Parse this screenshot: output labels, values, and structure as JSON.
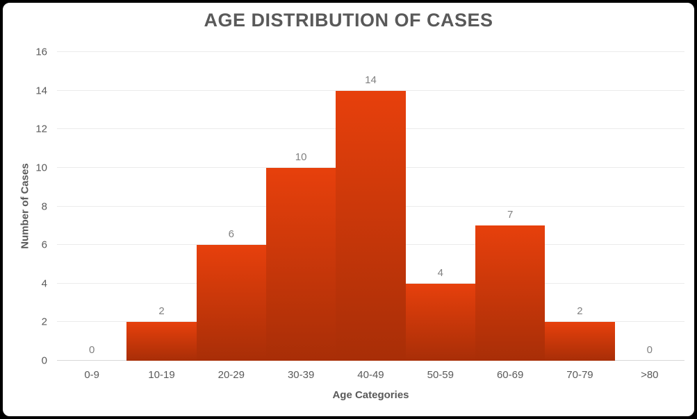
{
  "chart_data": {
    "type": "bar",
    "title": "AGE DISTRIBUTION OF CASES",
    "categories": [
      "0-9",
      "10-19",
      "20-29",
      "30-39",
      "40-49",
      "50-59",
      "60-69",
      "70-79",
      ">80"
    ],
    "values": [
      0,
      2,
      6,
      10,
      14,
      4,
      7,
      2,
      0
    ],
    "xlabel": "Age Categories",
    "ylabel": "Number of Cases",
    "ylim": [
      0,
      16
    ],
    "ytick_step": 2,
    "grid": true,
    "legend": "none",
    "bar_gap": 0,
    "data_labels": true,
    "colors": {
      "bar_top": "#e7400c",
      "bar_bottom": "#a82e07",
      "value_label": "#808080",
      "axis_text": "#595959",
      "gridline": "#ebebeb",
      "axis_line": "#d6d6d6",
      "frame_border": "#000000",
      "background": "#ffffff"
    }
  }
}
